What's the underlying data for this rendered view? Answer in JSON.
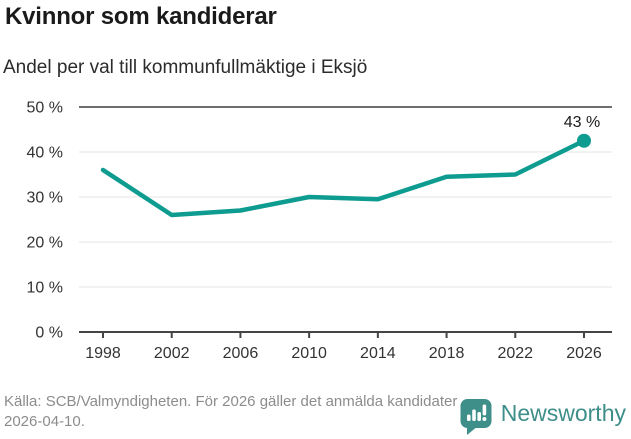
{
  "header": {
    "title": "Kvinnor som kandiderar",
    "subtitle": "Andel per val till kommunfullmäktige i Eksjö"
  },
  "chart_data": {
    "type": "line",
    "title": "Kvinnor som kandiderar",
    "subtitle": "Andel per val till kommunfullmäktige i Eksjö",
    "x": [
      1998,
      2002,
      2006,
      2010,
      2014,
      2018,
      2022,
      2026
    ],
    "xtick_labels": [
      "1998",
      "2002",
      "2006",
      "2010",
      "2014",
      "2018",
      "2022",
      "2026"
    ],
    "values": [
      36,
      26,
      27,
      30,
      29.5,
      34.5,
      35,
      42.5
    ],
    "end_label": "43 %",
    "ylim": [
      0,
      50
    ],
    "yticks": [
      0,
      10,
      20,
      30,
      40,
      50
    ],
    "ytick_labels": [
      "0 %",
      "10 %",
      "20 %",
      "30 %",
      "40 %",
      "50 %"
    ],
    "grid": true,
    "legend": "none",
    "line_color": "#0d9c8f",
    "axis_color": "#454545",
    "top_border_color": "#6e6e6e",
    "gridline_color": "#e4e4e4",
    "tick_label_color": "#333333",
    "end_label_color": "#1a1a1a"
  },
  "footer": {
    "source": "Källa: SCB/Valmyndigheten. För 2026 gäller det anmälda kandidater 2026-04-10.",
    "brand": {
      "name": "Newsworthy",
      "color": "#3e8e89"
    }
  }
}
